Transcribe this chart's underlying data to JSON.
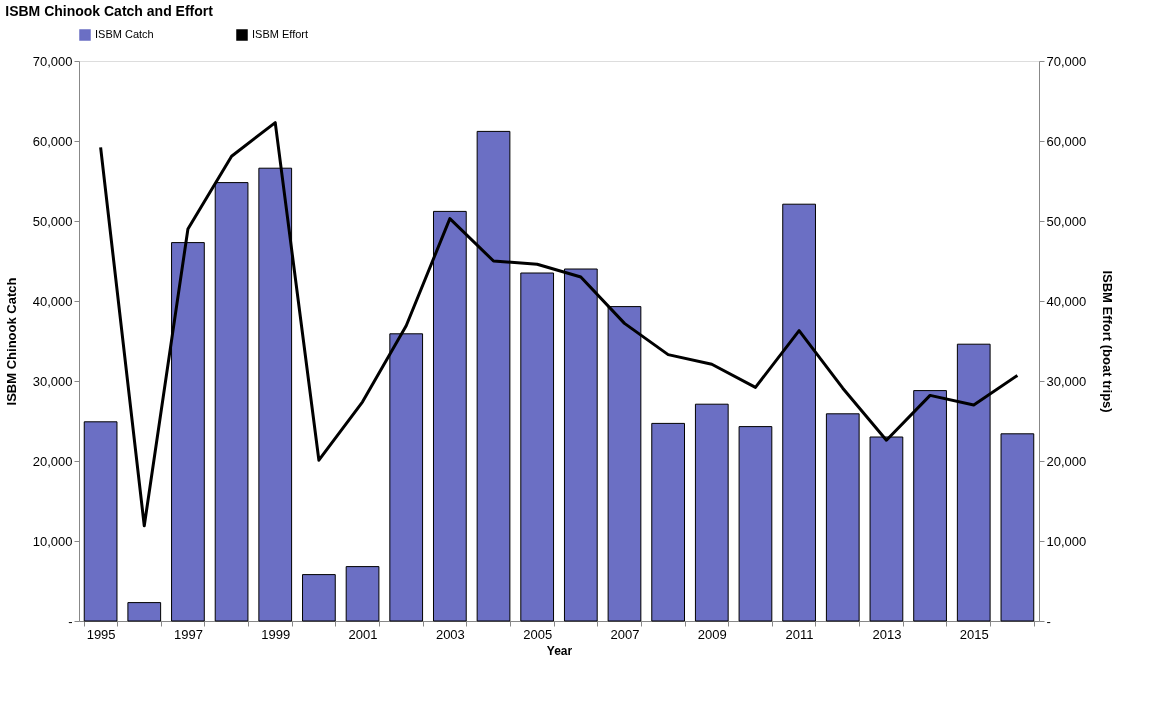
{
  "chart_data": {
    "type": "bar",
    "title": "ISBM Chinook Catch and Effort",
    "xlabel": "Year",
    "ylabel": "ISBM Chinook Catch",
    "y2label": "ISBM Effort (boat trips)",
    "categories": [
      "1995",
      null,
      "1997",
      null,
      "1999",
      null,
      "2001",
      null,
      "2003",
      null,
      "2005",
      null,
      "2007",
      null,
      "2009",
      null,
      "2011",
      null,
      "2013",
      null,
      "2015",
      null
    ],
    "series": [
      {
        "name": "ISBM Catch",
        "color": "#6b6fc4",
        "values": [
          24900,
          2300,
          47300,
          54800,
          56600,
          5800,
          6800,
          35900,
          51200,
          61200,
          43500,
          44000,
          39300,
          24700,
          27100,
          24300,
          52100,
          25900,
          23000,
          28800,
          34600,
          23400
        ]
      },
      {
        "name": "ISBM Effort",
        "type": "line",
        "axis": "y2",
        "color": "#000000",
        "values": [
          59200,
          11900,
          49000,
          58100,
          62300,
          20100,
          27400,
          36900,
          50300,
          45000,
          44600,
          43000,
          37200,
          33300,
          32100,
          29200,
          36300,
          29100,
          22600,
          28200,
          27000,
          30700
        ]
      }
    ],
    "ylim": [
      0,
      70000
    ],
    "yticks": [
      {
        "value": 0,
        "label": "-"
      },
      {
        "value": 10000,
        "label": "10,000"
      },
      {
        "value": 20000,
        "label": "20,000"
      },
      {
        "value": 30000,
        "label": "30,000"
      },
      {
        "value": 40000,
        "label": "40,000"
      },
      {
        "value": 50000,
        "label": "50,000"
      },
      {
        "value": 60000,
        "label": "60,000"
      },
      {
        "value": 70000,
        "label": "70,000"
      }
    ],
    "y2lim": [
      0,
      70000
    ],
    "y2ticks": [
      {
        "value": 0,
        "label": "-"
      },
      {
        "value": 10000,
        "label": "10,000"
      },
      {
        "value": 20000,
        "label": "20,000"
      },
      {
        "value": 30000,
        "label": "30,000"
      },
      {
        "value": 40000,
        "label": "40,000"
      },
      {
        "value": 50000,
        "label": "50,000"
      },
      {
        "value": 60000,
        "label": "60,000"
      },
      {
        "value": 70000,
        "label": "70,000"
      }
    ],
    "grid": false,
    "legend": "top",
    "line_style": "solid",
    "marker": "none"
  }
}
